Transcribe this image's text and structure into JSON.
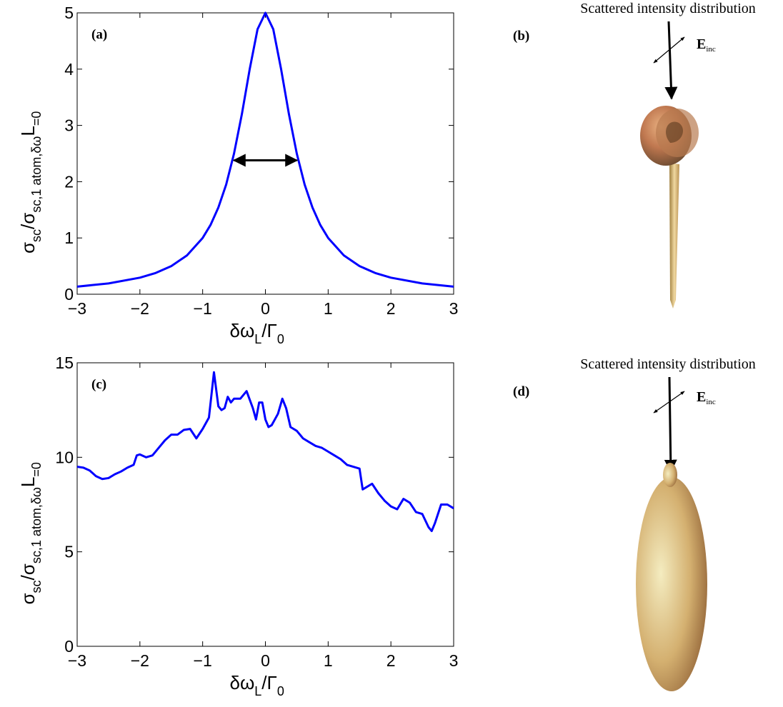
{
  "chart_data": [
    {
      "type": "line",
      "panel_label": "(a)",
      "x": [
        -3,
        -2.5,
        -2,
        -1.75,
        -1.5,
        -1.25,
        -1,
        -0.875,
        -0.75,
        -0.625,
        -0.5,
        -0.375,
        -0.25,
        -0.125,
        0,
        0.125,
        0.25,
        0.375,
        0.5,
        0.625,
        0.75,
        0.875,
        1,
        1.25,
        1.5,
        1.75,
        2,
        2.5,
        3
      ],
      "values": [
        0.135,
        0.192,
        0.294,
        0.377,
        0.5,
        0.69,
        1.0,
        1.23,
        1.54,
        1.95,
        2.5,
        3.2,
        4.0,
        4.71,
        5.0,
        4.71,
        4.0,
        3.2,
        2.5,
        1.95,
        1.54,
        1.23,
        1.0,
        0.69,
        0.5,
        0.377,
        0.294,
        0.192,
        0.135
      ],
      "color": "#0000ff",
      "xlim": [
        -3,
        3
      ],
      "xticks": [
        {
          "value": -3,
          "label": "−3"
        },
        {
          "value": -2,
          "label": "−2"
        },
        {
          "value": -1,
          "label": "−1"
        },
        0,
        1,
        2,
        3
      ],
      "ylim": [
        0,
        5
      ],
      "yticks": [
        0,
        1,
        2,
        3,
        4,
        5
      ],
      "xlabel": [
        "δω",
        "L",
        "/Γ",
        "0"
      ],
      "ylabel": [
        "σ",
        "sc",
        "/σ",
        "sc,1 atom,δω",
        "L",
        "=0"
      ],
      "arrow": {
        "x": [
          -0.5,
          0.5
        ],
        "y": 2.38
      }
    },
    {
      "type": "line",
      "panel_label": "(c)",
      "x": [
        -3,
        -2.9,
        -2.8,
        -2.7,
        -2.6,
        -2.5,
        -2.4,
        -2.3,
        -2.2,
        -2.1,
        -2.05,
        -2,
        -1.9,
        -1.8,
        -1.7,
        -1.6,
        -1.5,
        -1.4,
        -1.3,
        -1.2,
        -1.1,
        -1,
        -0.9,
        -0.82,
        -0.75,
        -0.7,
        -0.65,
        -0.6,
        -0.55,
        -0.5,
        -0.4,
        -0.3,
        -0.2,
        -0.15,
        -0.1,
        -0.05,
        0,
        0.05,
        0.1,
        0.2,
        0.27,
        0.33,
        0.4,
        0.5,
        0.6,
        0.7,
        0.8,
        0.9,
        1,
        1.1,
        1.2,
        1.3,
        1.4,
        1.5,
        1.55,
        1.6,
        1.7,
        1.8,
        1.9,
        2,
        2.1,
        2.2,
        2.3,
        2.4,
        2.5,
        2.6,
        2.65,
        2.7,
        2.8,
        2.9,
        3
      ],
      "values": [
        9.5,
        9.45,
        9.3,
        9.0,
        8.85,
        8.9,
        9.1,
        9.25,
        9.45,
        9.6,
        10.1,
        10.15,
        10.0,
        10.1,
        10.5,
        10.9,
        11.2,
        11.2,
        11.45,
        11.5,
        11.0,
        11.5,
        12.1,
        14.5,
        12.7,
        12.5,
        12.6,
        13.2,
        12.9,
        13.1,
        13.1,
        13.5,
        12.6,
        12.0,
        12.9,
        12.9,
        12.0,
        11.6,
        11.7,
        12.3,
        13.1,
        12.6,
        11.6,
        11.4,
        11.0,
        10.8,
        10.6,
        10.5,
        10.3,
        10.1,
        9.9,
        9.6,
        9.5,
        9.4,
        8.3,
        8.4,
        8.6,
        8.1,
        7.7,
        7.4,
        7.25,
        7.8,
        7.6,
        7.1,
        7.0,
        6.3,
        6.1,
        6.5,
        7.5,
        7.5,
        7.3
      ],
      "color": "#0000ff",
      "xlim": [
        -3,
        3
      ],
      "xticks": [
        {
          "value": -3,
          "label": "−3"
        },
        {
          "value": -2,
          "label": "−2"
        },
        {
          "value": -1,
          "label": "−1"
        },
        0,
        1,
        2,
        3
      ],
      "ylim": [
        0,
        15
      ],
      "yticks": [
        0,
        5,
        10,
        15
      ],
      "xlabel": [
        "δω",
        "L",
        "/Γ",
        "0"
      ],
      "ylabel": [
        "σ",
        "sc",
        "/σ",
        "sc,1 atom,δω",
        "L",
        "=0"
      ]
    }
  ],
  "illustrations": [
    {
      "label": "(b)",
      "title": "Scattered intensity distribution",
      "field_label": [
        "E",
        "inc"
      ]
    },
    {
      "label": "(d)",
      "title": "Scattered intensity distribution",
      "field_label": [
        "E",
        "inc"
      ]
    }
  ]
}
